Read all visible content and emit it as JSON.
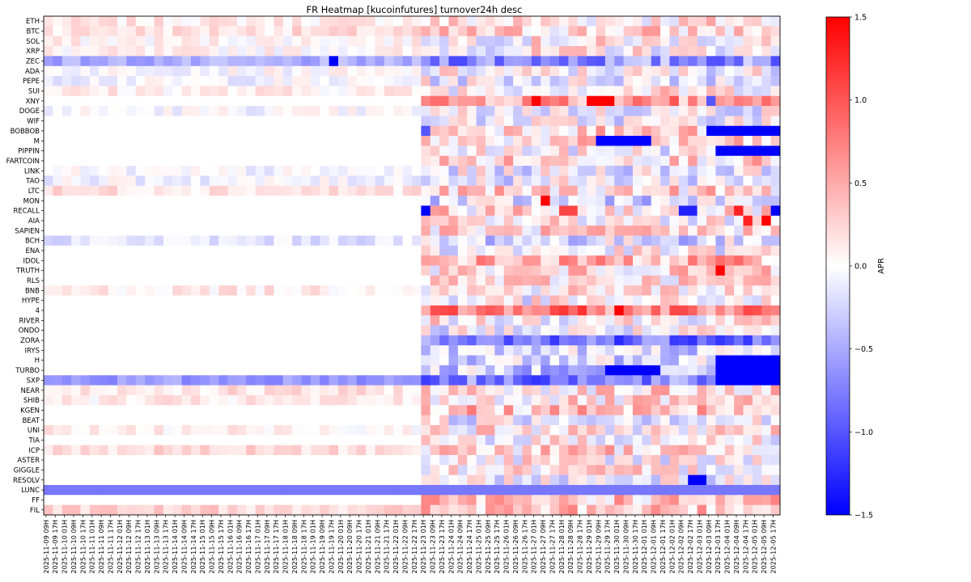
{
  "chart_data": {
    "type": "heatmap",
    "title": "FR Heatmap [kucoinfutures] turnover24h desc",
    "xlabel": "",
    "ylabel": "",
    "colorbar": {
      "label": "APR",
      "colormap": "bwr",
      "vmin": -1.5,
      "vmax": 1.5,
      "ticks": [
        1.5,
        1.0,
        0.5,
        0.0,
        -0.5,
        -1.0,
        -1.5
      ],
      "tick_labels": [
        "1.5",
        "1.0",
        "0.5",
        "0.0",
        "−0.5",
        "−1.0",
        "−1.5"
      ]
    },
    "rows": [
      "ETH",
      "BTC",
      "SOL",
      "XRP",
      "ZEC",
      "ADA",
      "PEPE",
      "SUI",
      "XNY",
      "DOGE",
      "WIF",
      "BOBBOB",
      "M",
      "PIPPIN",
      "FARTCOIN",
      "LINK",
      "TAO",
      "LTC",
      "MON",
      "RECALL",
      "AIA",
      "SAPIEN",
      "BCH",
      "ENA",
      "IDOL",
      "TRUTH",
      "RLS",
      "BNB",
      "HYPE",
      "4",
      "RIVER",
      "ONDO",
      "ZORA",
      "IRYS",
      "H",
      "TURBO",
      "SXP",
      "NEAR",
      "SHIB",
      "KGEN",
      "BEAT",
      "UNI",
      "TIA",
      "ICP",
      "ASTER",
      "GIGGLE",
      "RESOLV",
      "LUNC",
      "FF",
      "FIL"
    ],
    "x_labels": [
      "2025-11-09 09H",
      "2025-11-09 17H",
      "2025-11-10 01H",
      "2025-11-10 09H",
      "2025-11-10 17H",
      "2025-11-11 01H",
      "2025-11-11 09H",
      "2025-11-11 17H",
      "2025-11-12 01H",
      "2025-11-12 09H",
      "2025-11-12 17H",
      "2025-11-13 01H",
      "2025-11-13 09H",
      "2025-11-13 17H",
      "2025-11-14 01H",
      "2025-11-14 09H",
      "2025-11-14 17H",
      "2025-11-15 01H",
      "2025-11-15 09H",
      "2025-11-15 17H",
      "2025-11-16 01H",
      "2025-11-16 09H",
      "2025-11-16 17H",
      "2025-11-17 01H",
      "2025-11-17 09H",
      "2025-11-17 17H",
      "2025-11-18 01H",
      "2025-11-18 09H",
      "2025-11-18 17H",
      "2025-11-19 01H",
      "2025-11-19 09H",
      "2025-11-19 17H",
      "2025-11-20 01H",
      "2025-11-20 09H",
      "2025-11-20 17H",
      "2025-11-21 01H",
      "2025-11-21 09H",
      "2025-11-21 17H",
      "2025-11-22 01H",
      "2025-11-22 09H",
      "2025-11-22 17H",
      "2025-11-23 01H",
      "2025-11-23 09H",
      "2025-11-23 17H",
      "2025-11-24 01H",
      "2025-11-24 09H",
      "2025-11-24 17H",
      "2025-11-25 01H",
      "2025-11-25 09H",
      "2025-11-25 17H",
      "2025-11-26 01H",
      "2025-11-26 09H",
      "2025-11-26 17H",
      "2025-11-27 01H",
      "2025-11-27 09H",
      "2025-11-27 17H",
      "2025-11-28 01H",
      "2025-11-28 09H",
      "2025-11-28 17H",
      "2025-11-29 01H",
      "2025-11-29 09H",
      "2025-11-29 17H",
      "2025-11-30 01H",
      "2025-11-30 09H",
      "2025-11-30 17H",
      "2025-12-01 01H",
      "2025-12-01 09H",
      "2025-12-01 17H",
      "2025-12-02 01H",
      "2025-12-02 09H",
      "2025-12-02 17H",
      "2025-12-03 01H",
      "2025-12-03 09H",
      "2025-12-03 17H",
      "2025-12-04 01H",
      "2025-12-04 09H",
      "2025-12-04 17H",
      "2025-12-05 01H",
      "2025-12-05 09H",
      "2025-12-05 17H"
    ],
    "cols_per_label": 2,
    "num_periods": 160,
    "data_start_period": 0,
    "late_listing_start_period": 82,
    "values_note_skip": true,
    "notable_cells": [
      {
        "row": "XNY",
        "from": 106,
        "to": 107,
        "value": 1.5
      },
      {
        "row": "XNY",
        "from": 118,
        "to": 123,
        "value": 1.5
      },
      {
        "row": "XNY",
        "from": 112,
        "to": 113,
        "value": 0.9
      },
      {
        "row": "XNY",
        "from": 128,
        "to": 129,
        "value": 0.9
      },
      {
        "row": "XNY",
        "from": 136,
        "to": 137,
        "value": 1.0
      },
      {
        "row": "XNY",
        "from": 140,
        "to": 141,
        "value": 0.8
      },
      {
        "row": "XNY",
        "from": 144,
        "to": 145,
        "value": -1.0
      },
      {
        "row": "MON",
        "from": 108,
        "to": 109,
        "value": 1.5
      },
      {
        "row": "RECALL",
        "from": 82,
        "to": 83,
        "value": -1.5
      },
      {
        "row": "RECALL",
        "from": 112,
        "to": 115,
        "value": 1.1
      },
      {
        "row": "RECALL",
        "from": 138,
        "to": 141,
        "value": -1.3
      },
      {
        "row": "RECALL",
        "from": 150,
        "to": 151,
        "value": 1.3
      },
      {
        "row": "RECALL",
        "from": 158,
        "to": 159,
        "value": -1.5
      },
      {
        "row": "AIA",
        "from": 152,
        "to": 153,
        "value": 1.3
      },
      {
        "row": "AIA",
        "from": 156,
        "to": 157,
        "value": 1.5
      },
      {
        "row": "BOBBOB",
        "from": 144,
        "to": 159,
        "value": -1.5
      },
      {
        "row": "BOBBOB",
        "from": 82,
        "to": 83,
        "value": -1.0
      },
      {
        "row": "M",
        "from": 120,
        "to": 131,
        "value": -1.5
      },
      {
        "row": "PIPPIN",
        "from": 146,
        "to": 159,
        "value": -1.5
      },
      {
        "row": "4",
        "from": 124,
        "to": 125,
        "value": 1.5
      },
      {
        "row": "TRUTH",
        "from": 146,
        "to": 147,
        "value": 1.5
      },
      {
        "row": "H",
        "from": 146,
        "to": 159,
        "value": -1.5
      },
      {
        "row": "TURBO",
        "from": 122,
        "to": 133,
        "value": -1.5
      },
      {
        "row": "TURBO",
        "from": 146,
        "to": 159,
        "value": -1.5
      },
      {
        "row": "SXP",
        "from": 146,
        "to": 159,
        "value": -1.5
      },
      {
        "row": "RESOLV",
        "from": 140,
        "to": 143,
        "value": -1.5
      },
      {
        "row": "ZEC",
        "from": 62,
        "to": 63,
        "value": -1.5
      },
      {
        "row": "LUNC",
        "from": 0,
        "to": 159,
        "value": -0.8
      }
    ]
  }
}
